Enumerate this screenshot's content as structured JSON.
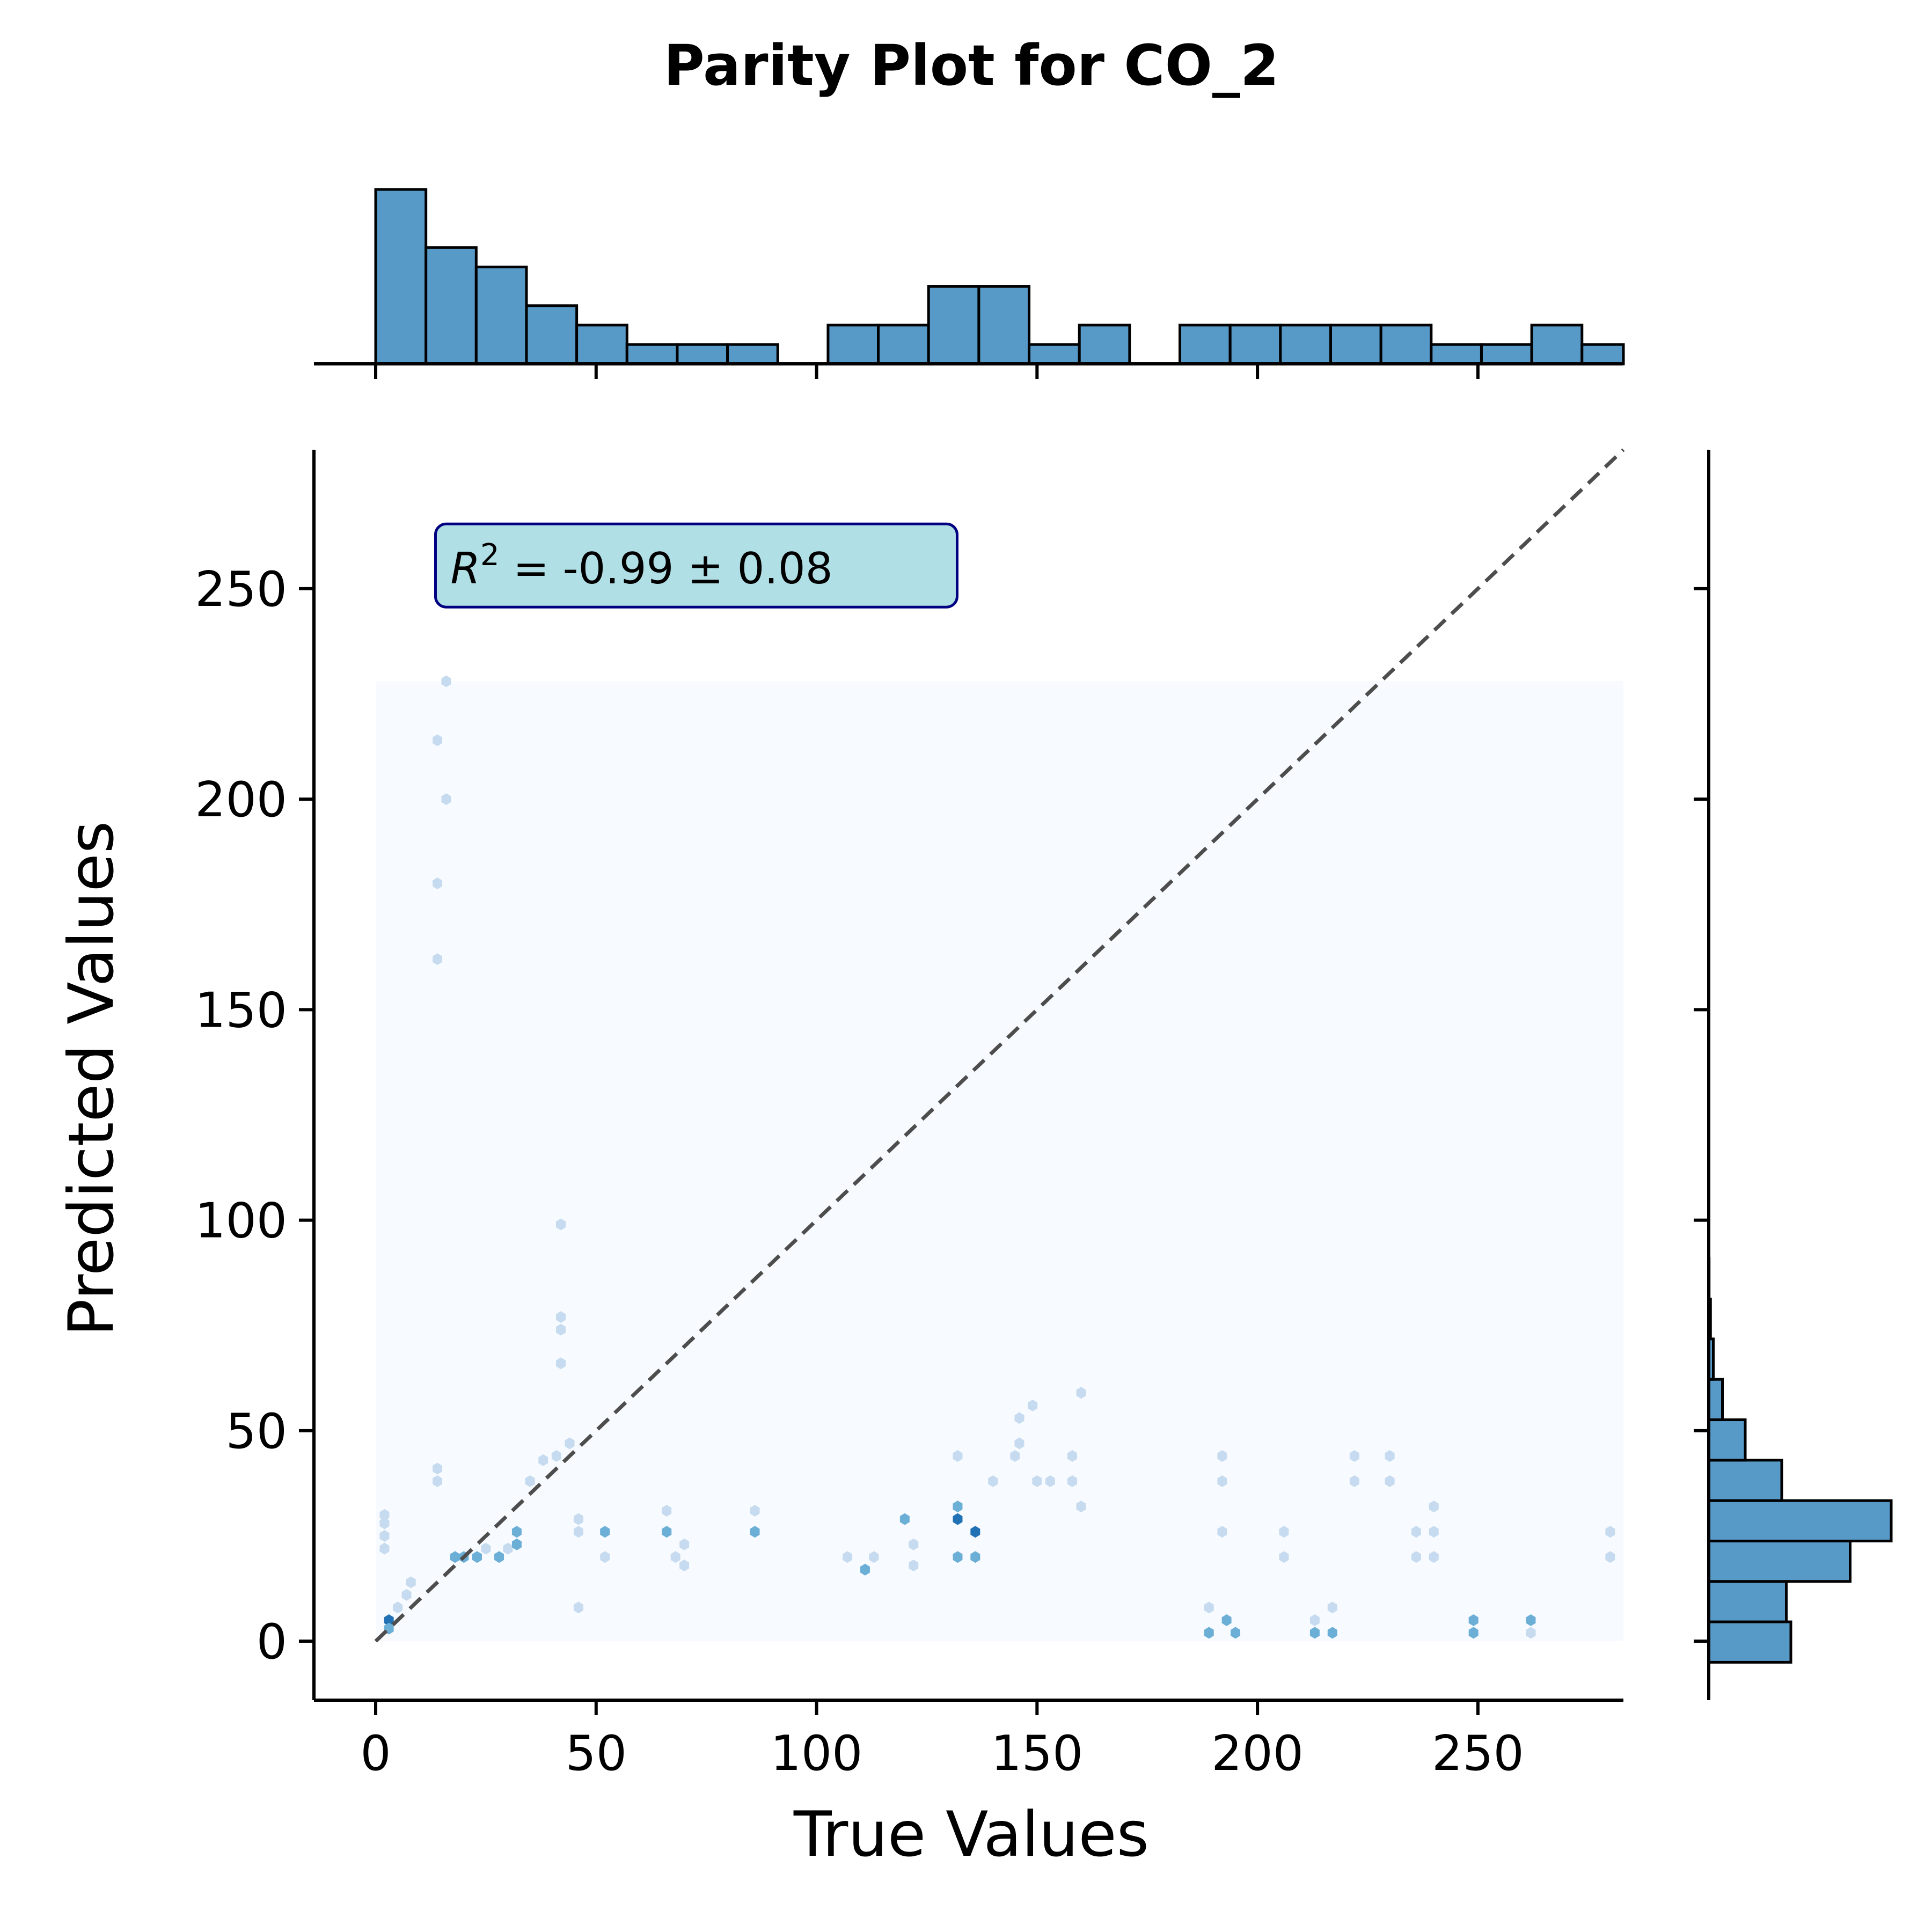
{
  "colors": {
    "bar_fill": "#5799c7",
    "bar_edge": "#000000",
    "hex_background": "#f7fbff",
    "hex_light": "#c6dbef",
    "hex_mid": "#6baed6",
    "hex_dark": "#2171b5",
    "diagonal": "#4d4d4d",
    "annotation_fill": "#b0e0e6",
    "annotation_edge": "#000080"
  },
  "chart_data": {
    "type": "hexbin-joint",
    "title": "Parity Plot for CO_2",
    "xlabel": "True Values",
    "ylabel": "Predicted Values",
    "xlim": [
      -14,
      283
    ],
    "ylim": [
      -14,
      283
    ],
    "x_ticks": [
      0,
      50,
      100,
      150,
      200,
      250
    ],
    "y_ticks": [
      0,
      50,
      100,
      150,
      200,
      250
    ],
    "annotation": {
      "r_symbol": "R",
      "r_power": "2",
      "text": " = -0.99 ± 0.08",
      "anchor_data": [
        16,
        252
      ]
    },
    "diagonal": {
      "from": [
        0,
        0
      ],
      "to": [
        283,
        283
      ],
      "style": "dashed"
    },
    "hexbin": {
      "extent": {
        "x": [
          0,
          283
        ],
        "y": [
          0,
          228
        ]
      },
      "points": [
        [
          3,
          5,
          3
        ],
        [
          3,
          3,
          2
        ],
        [
          5,
          8,
          1
        ],
        [
          7,
          11,
          1
        ],
        [
          8,
          14,
          1
        ],
        [
          2,
          28,
          1
        ],
        [
          2,
          30,
          1
        ],
        [
          2,
          25,
          1
        ],
        [
          2,
          22,
          1
        ],
        [
          14,
          38,
          1
        ],
        [
          14,
          41,
          1
        ],
        [
          14,
          214,
          1
        ],
        [
          14,
          180,
          1
        ],
        [
          14,
          162,
          1
        ],
        [
          16,
          200,
          1
        ],
        [
          16,
          228,
          1
        ],
        [
          18,
          20,
          2
        ],
        [
          20,
          20,
          2
        ],
        [
          23,
          20,
          2
        ],
        [
          25,
          22,
          1
        ],
        [
          28,
          20,
          2
        ],
        [
          30,
          22,
          1
        ],
        [
          32,
          26,
          2
        ],
        [
          32,
          23,
          2
        ],
        [
          35,
          38,
          1
        ],
        [
          38,
          43,
          1
        ],
        [
          41,
          44,
          1
        ],
        [
          42,
          66,
          1
        ],
        [
          42,
          74,
          1
        ],
        [
          42,
          77,
          1
        ],
        [
          42,
          99,
          1
        ],
        [
          44,
          47,
          1
        ],
        [
          46,
          26,
          1
        ],
        [
          46,
          29,
          1
        ],
        [
          46,
          8,
          1
        ],
        [
          52,
          26,
          2
        ],
        [
          52,
          20,
          1
        ],
        [
          66,
          26,
          2
        ],
        [
          66,
          31,
          1
        ],
        [
          68,
          20,
          1
        ],
        [
          70,
          23,
          1
        ],
        [
          70,
          18,
          1
        ],
        [
          86,
          26,
          2
        ],
        [
          86,
          31,
          1
        ],
        [
          107,
          20,
          1
        ],
        [
          111,
          17,
          2
        ],
        [
          113,
          20,
          1
        ],
        [
          120,
          29,
          2
        ],
        [
          122,
          23,
          1
        ],
        [
          122,
          18,
          1
        ],
        [
          132,
          29,
          3
        ],
        [
          132,
          32,
          2
        ],
        [
          132,
          44,
          1
        ],
        [
          132,
          20,
          2
        ],
        [
          136,
          26,
          3
        ],
        [
          136,
          20,
          2
        ],
        [
          140,
          38,
          1
        ],
        [
          145,
          44,
          1
        ],
        [
          146,
          47,
          1
        ],
        [
          146,
          53,
          1
        ],
        [
          149,
          56,
          1
        ],
        [
          150,
          38,
          1
        ],
        [
          153,
          38,
          1
        ],
        [
          158,
          38,
          1
        ],
        [
          158,
          44,
          1
        ],
        [
          160,
          32,
          1
        ],
        [
          160,
          59,
          1
        ],
        [
          192,
          44,
          1
        ],
        [
          192,
          38,
          1
        ],
        [
          192,
          26,
          1
        ],
        [
          189,
          8,
          1
        ],
        [
          189,
          2,
          2
        ],
        [
          193,
          5,
          2
        ],
        [
          195,
          2,
          2
        ],
        [
          206,
          26,
          1
        ],
        [
          206,
          20,
          1
        ],
        [
          213,
          2,
          2
        ],
        [
          213,
          5,
          1
        ],
        [
          217,
          8,
          1
        ],
        [
          217,
          2,
          2
        ],
        [
          222,
          44,
          1
        ],
        [
          222,
          38,
          1
        ],
        [
          230,
          44,
          1
        ],
        [
          230,
          38,
          1
        ],
        [
          236,
          26,
          1
        ],
        [
          236,
          20,
          1
        ],
        [
          240,
          32,
          1
        ],
        [
          240,
          26,
          1
        ],
        [
          240,
          20,
          1
        ],
        [
          249,
          5,
          2
        ],
        [
          249,
          2,
          2
        ],
        [
          262,
          5,
          2
        ],
        [
          262,
          2,
          1
        ],
        [
          280,
          26,
          1
        ],
        [
          280,
          20,
          1
        ]
      ]
    },
    "top_histogram": {
      "bin_edges": [
        0,
        11.4,
        22.8,
        34.2,
        45.6,
        57,
        68.4,
        79.8,
        91.2,
        102.6,
        114,
        125.4,
        136.8,
        148.2,
        159.6,
        171,
        182.4,
        193.8,
        205.2,
        216.6,
        228,
        239.4,
        250.8,
        262.2,
        273.6,
        283
      ],
      "counts": [
        9,
        6,
        5,
        3,
        2,
        1,
        1,
        1,
        0,
        2,
        2,
        4,
        4,
        1,
        2,
        0,
        2,
        2,
        2,
        2,
        2,
        1,
        1,
        2,
        1
      ]
    },
    "right_histogram": {
      "bin_edges": [
        -5,
        4.6,
        14.2,
        23.8,
        33.4,
        43,
        52.6,
        62.2,
        71.8,
        81.4,
        91,
        100.6,
        110.2,
        119.8,
        129.4,
        139,
        148.6,
        158.2,
        167.8,
        177.4,
        187,
        196.6,
        206.2,
        215.8,
        225.4
      ],
      "counts": [
        18,
        17,
        31,
        40,
        16,
        8,
        3,
        1,
        0.5,
        0.2,
        0.1,
        0.1,
        0.05,
        0.05,
        0.05,
        0.05,
        0.05,
        0.05,
        0.05,
        0.05,
        0.05,
        0.05,
        0.05,
        0.05
      ]
    }
  }
}
